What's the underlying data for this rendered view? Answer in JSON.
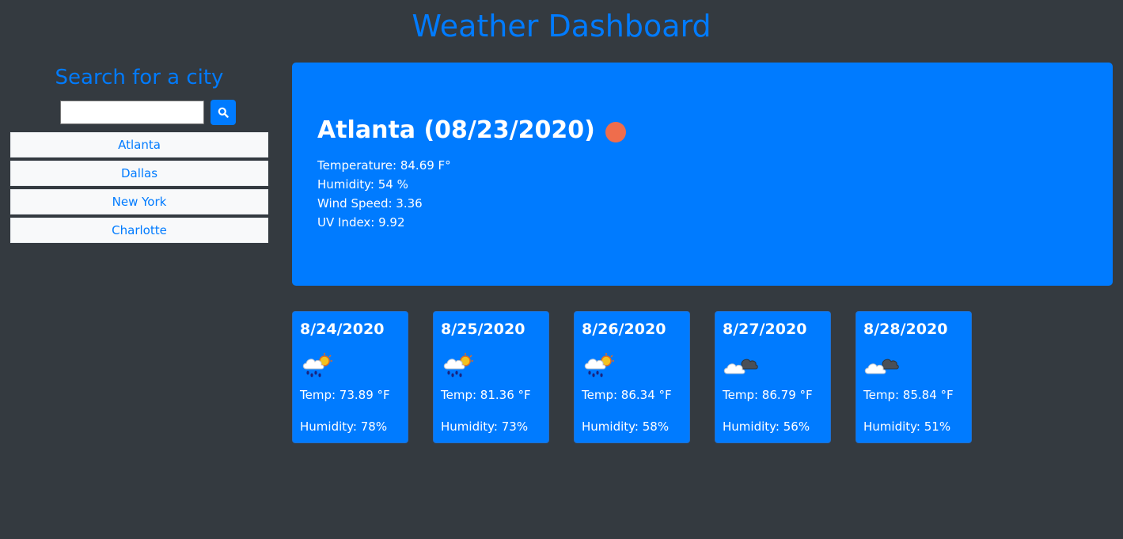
{
  "header": {
    "title": "Weather Dashboard"
  },
  "sidebar": {
    "heading": "Search for a city",
    "search": {
      "value": "",
      "placeholder": ""
    },
    "cities": [
      "Atlanta",
      "Dallas",
      "New York",
      "Charlotte"
    ]
  },
  "current": {
    "title": "Atlanta (08/23/2020)",
    "icon": "weather-dot-icon",
    "icon_color": "#ef6d4c",
    "temperature": "Temperature: 84.69 F°",
    "humidity": "Humidity: 54 %",
    "wind": "Wind Speed: 3.36",
    "uv": "UV Index: 9.92"
  },
  "forecast": [
    {
      "date": "8/24/2020",
      "icon": "rain-sun-cloud-icon",
      "temp": "Temp: 73.89 °F",
      "humidity": "Humidity: 78%"
    },
    {
      "date": "8/25/2020",
      "icon": "rain-sun-cloud-icon",
      "temp": "Temp: 81.36 °F",
      "humidity": "Humidity: 73%"
    },
    {
      "date": "8/26/2020",
      "icon": "rain-sun-cloud-icon",
      "temp": "Temp: 86.34 °F",
      "humidity": "Humidity: 58%"
    },
    {
      "date": "8/27/2020",
      "icon": "cloudy-icon",
      "temp": "Temp: 86.79 °F",
      "humidity": "Humidity: 56%"
    },
    {
      "date": "8/28/2020",
      "icon": "cloudy-icon",
      "temp": "Temp: 85.84 °F",
      "humidity": "Humidity: 51%"
    }
  ],
  "colors": {
    "background": "#343a40",
    "accent": "#007bff",
    "list_bg": "#f8f9fa"
  }
}
